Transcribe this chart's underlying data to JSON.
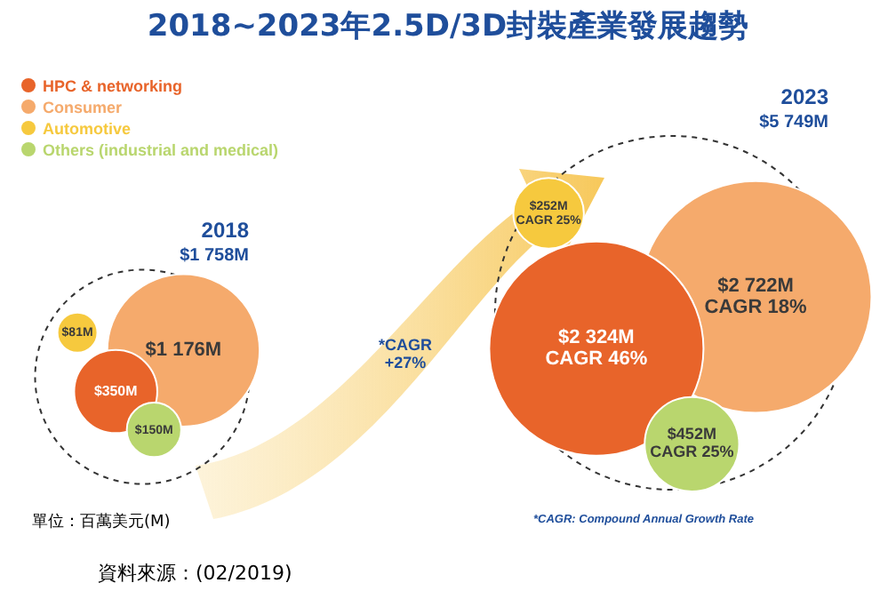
{
  "chart_data": {
    "type": "other",
    "title": "2018~2023年2.5D/3D封裝產業發展趨勢",
    "categories": [
      "2018",
      "2023"
    ],
    "totals": [
      "$1 758M",
      "$5 749M"
    ],
    "legend": "top left",
    "series": [
      {
        "name": "HPC & networking",
        "color": "#e8642a",
        "values": [
          350,
          2324
        ],
        "value_labels": [
          "$350M",
          "$2 324M"
        ]
      },
      {
        "name": "Consumer",
        "color": "#f5aa6c",
        "values": [
          1176,
          2722
        ],
        "value_labels": [
          "$1 176M",
          "$2 722M"
        ]
      },
      {
        "name": "Automotive",
        "color": "#f6c93e",
        "values": [
          81,
          252
        ],
        "value_labels": [
          "$81M",
          "$252M"
        ]
      },
      {
        "name": "Others (industrial and medical)",
        "color": "#b9d66e",
        "values": [
          150,
          452
        ],
        "value_labels": [
          "$150M",
          "$452M"
        ]
      }
    ],
    "annotations": [
      "*CAGR\n+27%",
      "*CAGR: Compound Annual Growth Rate",
      "單位：百萬美元(M)",
      "資料來源：(02/2019)",
      "CAGR 46%",
      "CAGR 18%",
      "CAGR 25%",
      "CAGR 25%"
    ]
  }
}
